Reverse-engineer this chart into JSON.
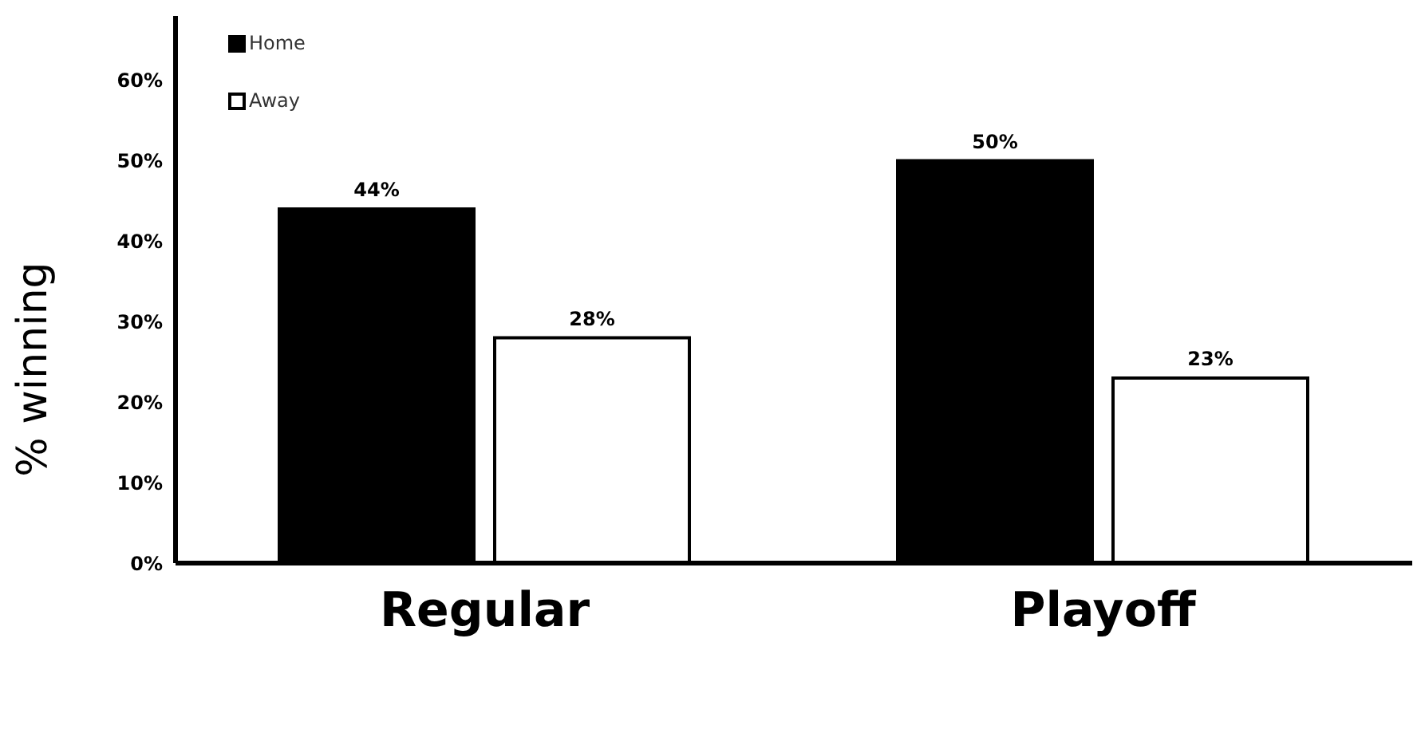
{
  "chart_data": {
    "type": "bar",
    "ylabel": "% winning",
    "categories": [
      "Regular",
      "Playoff"
    ],
    "series": [
      {
        "name": "Home",
        "color": "#000000",
        "values": [
          44,
          50
        ],
        "value_labels": [
          "44%",
          "50%"
        ]
      },
      {
        "name": "Away",
        "color": "#ffffff",
        "values": [
          28,
          23
        ],
        "value_labels": [
          "28%",
          "23%"
        ]
      }
    ],
    "ylim": [
      0,
      68
    ],
    "yticks": [
      {
        "value": 0,
        "label": "0%"
      },
      {
        "value": 10,
        "label": "10%"
      },
      {
        "value": 20,
        "label": "20%"
      },
      {
        "value": 30,
        "label": "30%"
      },
      {
        "value": 40,
        "label": "40%"
      },
      {
        "value": 50,
        "label": "50%"
      },
      {
        "value": 60,
        "label": "60%"
      }
    ],
    "legend": "top left",
    "grid": false
  }
}
